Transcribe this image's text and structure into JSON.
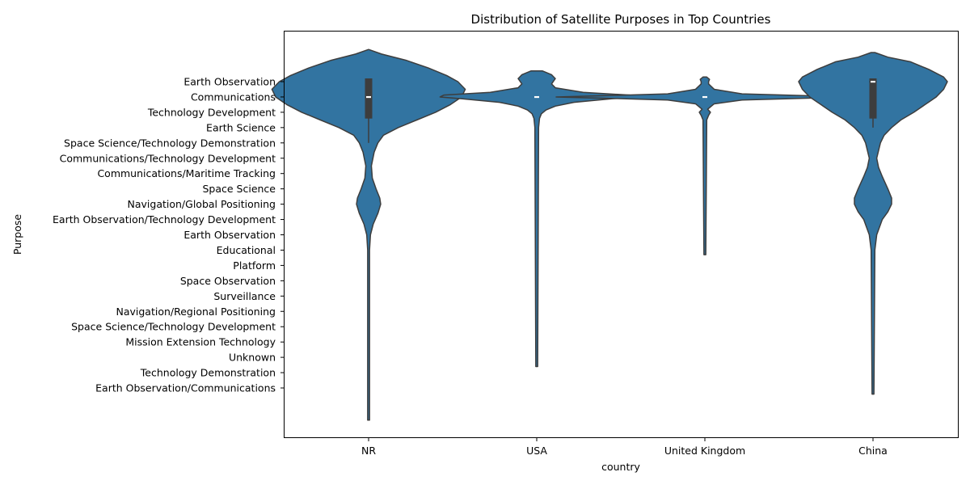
{
  "chart_data": {
    "type": "violin",
    "title": "Distribution of Satellite Purposes in Top Countries",
    "xlabel": "country",
    "ylabel": "Purpose",
    "categories": [
      "NR",
      "USA",
      "United Kingdom",
      "China"
    ],
    "y_categories": [
      "Earth Observation",
      "Communications",
      "Technology Development",
      "Earth Science",
      "Space Science/Technology Demonstration",
      "Communications/Technology Development",
      "Communications/Maritime Tracking",
      "Space Science",
      "Navigation/Global Positioning",
      "Earth Observation/Technology Development",
      "Earth Observation ",
      "Educational",
      "Platform",
      "Space Observation",
      "Surveillance",
      "Navigation/Regional Positioning",
      "Space Science/Technology Development",
      "Mission Extension Technology",
      "Unknown",
      "Technology Demonstration",
      "Earth Observation/Communications"
    ],
    "y_axis_inverted": true,
    "violin_color": "#3274a1",
    "edge_color": "#3d3d3d",
    "series": [
      {
        "category": "NR",
        "y_min": -2.1,
        "y_max": 22.1,
        "quartiles": [
          0.0,
          1.0,
          2.2
        ],
        "median": 1.0,
        "whisker": [
          0.0,
          4.0
        ],
        "profile": [
          [
            -2.1,
            0.0
          ],
          [
            -1.8,
            0.07
          ],
          [
            -1.4,
            0.2
          ],
          [
            -0.9,
            0.32
          ],
          [
            -0.4,
            0.42
          ],
          [
            0.0,
            0.48
          ],
          [
            0.5,
            0.52
          ],
          [
            1.0,
            0.5
          ],
          [
            1.5,
            0.44
          ],
          [
            2.0,
            0.36
          ],
          [
            2.5,
            0.26
          ],
          [
            3.0,
            0.16
          ],
          [
            3.5,
            0.08
          ],
          [
            4.0,
            0.05
          ],
          [
            4.6,
            0.03
          ],
          [
            5.5,
            0.015
          ],
          [
            6.3,
            0.02
          ],
          [
            7.0,
            0.04
          ],
          [
            7.6,
            0.06
          ],
          [
            8.0,
            0.065
          ],
          [
            8.6,
            0.05
          ],
          [
            9.3,
            0.025
          ],
          [
            10.0,
            0.01
          ],
          [
            11.0,
            0.005
          ],
          [
            22.1,
            0.005
          ]
        ]
      },
      {
        "category": "USA",
        "y_min": -0.7,
        "y_max": 18.6,
        "quartiles": [
          1.0,
          1.0,
          1.0
        ],
        "median": 1.0,
        "whisker": [
          1.0,
          1.0
        ],
        "profile": [
          [
            -0.7,
            0.03
          ],
          [
            -0.45,
            0.08
          ],
          [
            -0.2,
            0.1
          ],
          [
            0.15,
            0.08
          ],
          [
            0.4,
            0.1
          ],
          [
            0.7,
            0.25
          ],
          [
            0.88,
            0.5
          ],
          [
            1.0,
            0.52
          ],
          [
            1.12,
            0.4
          ],
          [
            1.35,
            0.2
          ],
          [
            1.6,
            0.1
          ],
          [
            1.85,
            0.05
          ],
          [
            2.1,
            0.025
          ],
          [
            2.4,
            0.015
          ],
          [
            3.0,
            0.01
          ],
          [
            18.6,
            0.005
          ]
        ]
      },
      {
        "category": "United Kingdom",
        "y_min": -0.3,
        "y_max": 11.3,
        "quartiles": [
          1.0,
          1.0,
          1.0
        ],
        "median": 1.0,
        "whisker": [
          1.0,
          1.0
        ],
        "profile": [
          [
            -0.3,
            0.01
          ],
          [
            -0.15,
            0.025
          ],
          [
            0.0,
            0.02
          ],
          [
            0.15,
            0.02
          ],
          [
            0.5,
            0.05
          ],
          [
            0.8,
            0.2
          ],
          [
            0.92,
            0.55
          ],
          [
            1.0,
            0.8
          ],
          [
            1.08,
            0.55
          ],
          [
            1.2,
            0.2
          ],
          [
            1.45,
            0.05
          ],
          [
            1.8,
            0.015
          ],
          [
            2.0,
            0.03
          ],
          [
            2.2,
            0.02
          ],
          [
            2.5,
            0.01
          ],
          [
            11.3,
            0.005
          ]
        ]
      },
      {
        "category": "China",
        "y_min": -1.9,
        "y_max": 20.4,
        "quartiles": [
          0.0,
          0.0,
          2.2
        ],
        "median": 0.0,
        "whisker": [
          0.0,
          3.0
        ],
        "profile": [
          [
            -1.9,
            0.01
          ],
          [
            -1.6,
            0.08
          ],
          [
            -1.3,
            0.2
          ],
          [
            -0.8,
            0.3
          ],
          [
            -0.3,
            0.38
          ],
          [
            0.0,
            0.4
          ],
          [
            0.5,
            0.38
          ],
          [
            1.0,
            0.34
          ],
          [
            1.5,
            0.28
          ],
          [
            2.0,
            0.22
          ],
          [
            2.5,
            0.15
          ],
          [
            3.0,
            0.1
          ],
          [
            3.5,
            0.06
          ],
          [
            4.0,
            0.04
          ],
          [
            5.0,
            0.02
          ],
          [
            5.6,
            0.03
          ],
          [
            6.2,
            0.05
          ],
          [
            7.0,
            0.08
          ],
          [
            7.6,
            0.1
          ],
          [
            8.0,
            0.1
          ],
          [
            8.5,
            0.08
          ],
          [
            9.0,
            0.05
          ],
          [
            10.0,
            0.02
          ],
          [
            11.0,
            0.01
          ],
          [
            20.4,
            0.005
          ]
        ]
      }
    ],
    "grid": false,
    "legend": "none"
  }
}
